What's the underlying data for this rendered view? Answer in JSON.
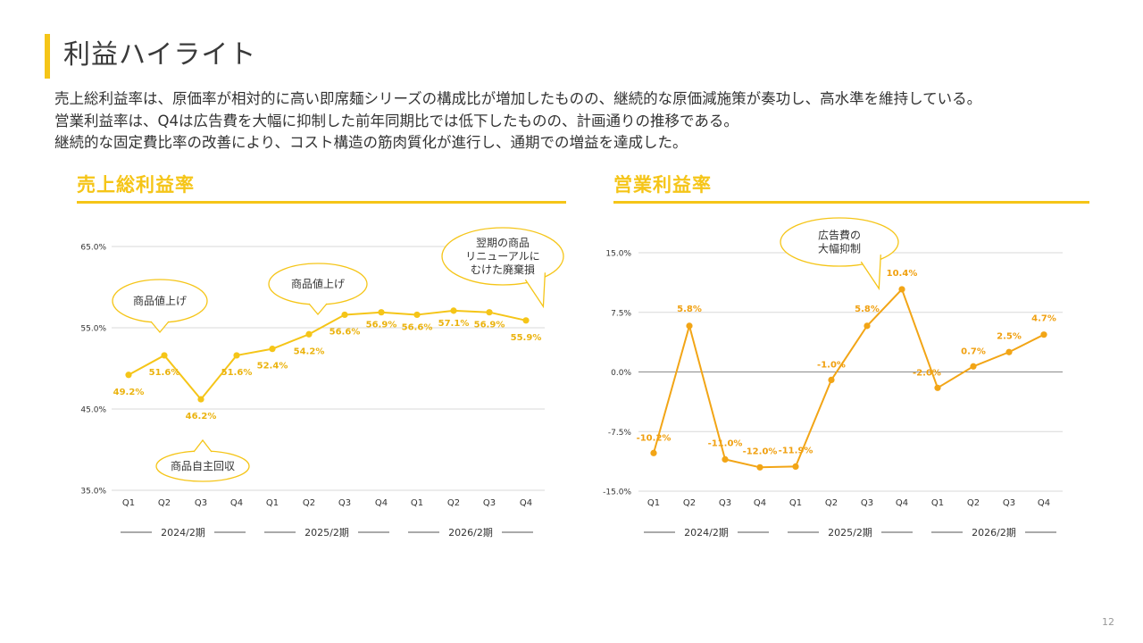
{
  "page": {
    "title": "利益ハイライト",
    "summary": [
      "売上総利益率は、原価率が相対的に高い即席麺シリーズの構成比が増加したものの、継続的な原価減施策が奏功し、高水準を維持している。",
      "営業利益率は、Q4は広告費を大幅に抑制した前年同期比では低下したものの、計画通りの推移である。",
      "継続的な固定費比率の改善により、コスト構造の筋肉質化が進行し、通期での増益を達成した。"
    ],
    "page_number": "12"
  },
  "colors": {
    "accent": "#F5C518",
    "gross_line": "#F5C518",
    "gross_label": "#EBB30F",
    "operating_line": "#F2A516",
    "operating_label": "#F0A010",
    "callout_border": "#F5C518",
    "grid": "#D9D9D9",
    "zero_line": "#8C8C8C",
    "axis_text": "#333333"
  },
  "chart_data": [
    {
      "id": "gross",
      "type": "line",
      "title": "売上総利益率",
      "categories": [
        "Q1",
        "Q2",
        "Q3",
        "Q4",
        "Q1",
        "Q2",
        "Q3",
        "Q4",
        "Q1",
        "Q2",
        "Q3",
        "Q4"
      ],
      "periods": [
        {
          "label": "2024/2期",
          "from": 0,
          "to": 3
        },
        {
          "label": "2025/2期",
          "from": 4,
          "to": 7
        },
        {
          "label": "2026/2期",
          "from": 8,
          "to": 11
        }
      ],
      "values": [
        49.2,
        51.6,
        46.2,
        51.6,
        52.4,
        54.2,
        56.6,
        56.9,
        56.6,
        57.1,
        56.9,
        55.9
      ],
      "data_labels": [
        "49.2%",
        "51.6%",
        "46.2%",
        "51.6%",
        "52.4%",
        "54.2%",
        "56.6%",
        "56.9%",
        "56.6%",
        "57.1%",
        "56.9%",
        "55.9%"
      ],
      "yticks": [
        35.0,
        45.0,
        55.0,
        65.0
      ],
      "ytick_labels": [
        "35.0%",
        "45.0%",
        "55.0%",
        "65.0%"
      ],
      "ylim": [
        35.0,
        65.0
      ],
      "grid": true,
      "annotations": [
        {
          "text": [
            "商品値上げ"
          ],
          "point": 1
        },
        {
          "text": [
            "商品自主回収"
          ],
          "point": 2
        },
        {
          "text": [
            "商品値上げ"
          ],
          "point": 5
        },
        {
          "text": [
            "翌期の商品",
            "リニューアルに",
            "むけた廃棄損"
          ],
          "point": 11
        }
      ]
    },
    {
      "id": "operating",
      "type": "line",
      "title": "営業利益率",
      "categories": [
        "Q1",
        "Q2",
        "Q3",
        "Q4",
        "Q1",
        "Q2",
        "Q3",
        "Q4",
        "Q1",
        "Q2",
        "Q3",
        "Q4"
      ],
      "periods": [
        {
          "label": "2024/2期",
          "from": 0,
          "to": 3
        },
        {
          "label": "2025/2期",
          "from": 4,
          "to": 7
        },
        {
          "label": "2026/2期",
          "from": 8,
          "to": 11
        }
      ],
      "values": [
        -10.2,
        5.8,
        -11.0,
        -12.0,
        -11.9,
        -1.0,
        5.8,
        10.4,
        -2.0,
        0.7,
        2.5,
        4.7
      ],
      "data_labels": [
        "-10.2%",
        "5.8%",
        "-11.0%",
        "-12.0%",
        "-11.9%",
        "-1.0%",
        "5.8%",
        "10.4%",
        "-2.0%",
        "0.7%",
        "2.5%",
        "4.7%"
      ],
      "yticks": [
        -15.0,
        -7.5,
        0.0,
        7.5,
        15.0
      ],
      "ytick_labels": [
        "-15.0%",
        "-7.5%",
        "0.0%",
        "7.5%",
        "15.0%"
      ],
      "ylim": [
        -15.0,
        15.0
      ],
      "grid": true,
      "annotations": [
        {
          "text": [
            "広告費の",
            "大幅抑制"
          ],
          "point": 7
        }
      ]
    }
  ]
}
